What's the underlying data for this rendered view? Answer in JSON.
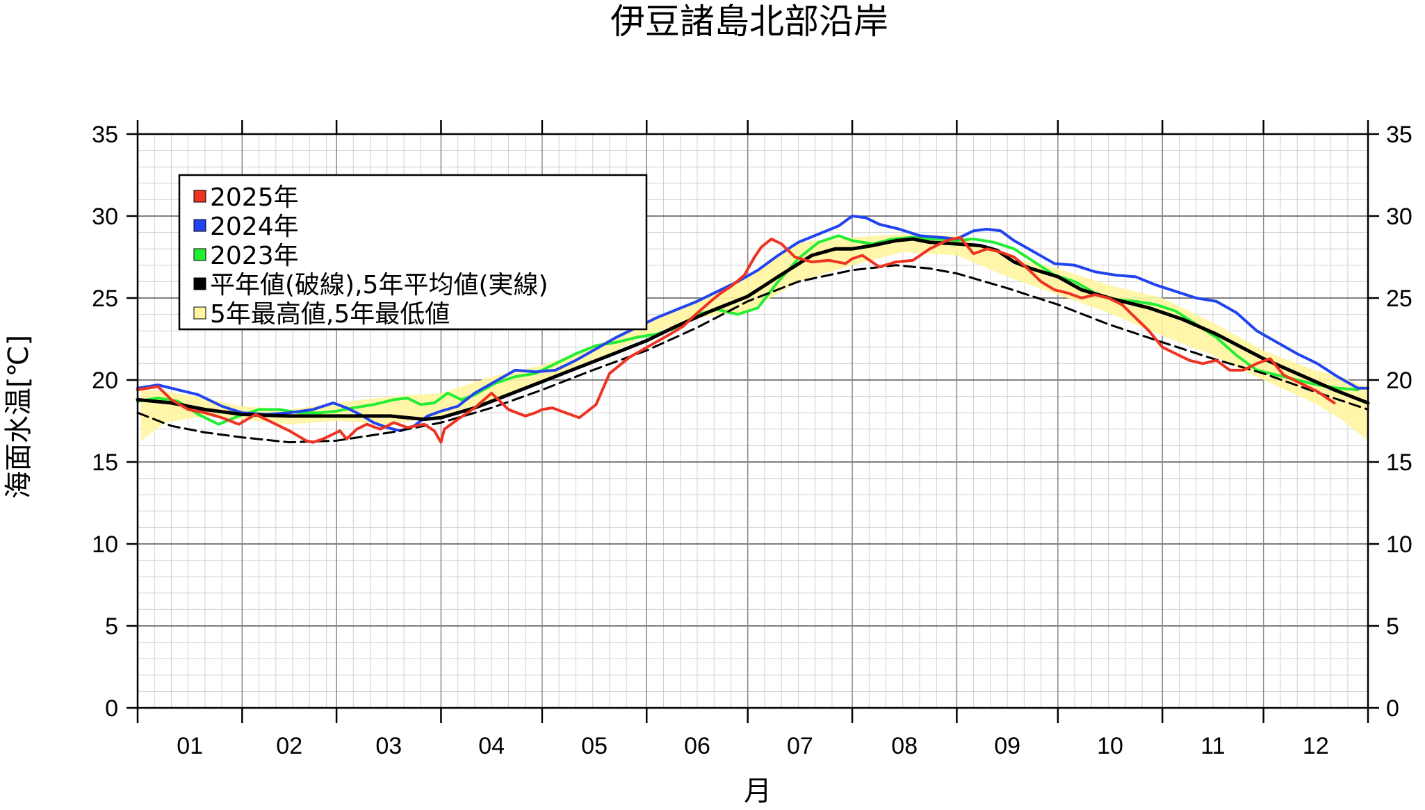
{
  "chart_data": {
    "type": "line",
    "title": "伊豆諸島北部沿岸",
    "xlabel": "月",
    "ylabel": "海面水温[℃]",
    "ylim": [
      0,
      35
    ],
    "xlim": [
      0,
      365
    ],
    "yticks": [
      0,
      5,
      10,
      15,
      20,
      25,
      30,
      35
    ],
    "month_labels": [
      "01",
      "02",
      "03",
      "04",
      "05",
      "06",
      "07",
      "08",
      "09",
      "10",
      "11",
      "12"
    ],
    "month_starts": [
      0,
      31,
      59,
      90,
      120,
      151,
      181,
      212,
      243,
      273,
      304,
      334,
      365
    ],
    "grid": true,
    "legend_position": "top-left",
    "legend": [
      {
        "label": "2025年",
        "color": "#ee3322"
      },
      {
        "label": "2024年",
        "color": "#2244ee"
      },
      {
        "label": "2023年",
        "color": "#22ee33"
      },
      {
        "label": "平年値(破線),5年平均値(実線)",
        "color": "#000000"
      },
      {
        "label": "5年最高値,5年最低値",
        "color": "#fff5a0"
      }
    ],
    "band": {
      "name": "5年最高値,5年最低値",
      "x": [
        1,
        8,
        20,
        31,
        45,
        59,
        75,
        90,
        105,
        120,
        135,
        151,
        166,
        181,
        196,
        212,
        227,
        243,
        258,
        273,
        288,
        304,
        319,
        334,
        349,
        357,
        365
      ],
      "high": [
        19.4,
        19.3,
        18.9,
        18.4,
        18.2,
        18.6,
        19.0,
        19.2,
        20.2,
        20.9,
        22.0,
        23.6,
        24.9,
        26.3,
        28.4,
        28.7,
        28.9,
        28.8,
        27.5,
        26.8,
        25.8,
        25.0,
        23.5,
        21.8,
        20.6,
        20.2,
        19.5
      ],
      "low": [
        16.3,
        17.4,
        17.8,
        17.6,
        17.3,
        17.5,
        17.3,
        17.8,
        18.6,
        19.9,
        21.1,
        22.7,
        23.8,
        24.2,
        26.0,
        27.0,
        27.8,
        27.6,
        26.3,
        25.2,
        24.1,
        22.7,
        21.5,
        20.0,
        18.6,
        17.6,
        16.3
      ]
    },
    "series": [
      {
        "name": "2025年",
        "color": "#ee3322",
        "x": [
          0,
          6,
          10,
          15,
          20,
          25,
          30,
          35,
          40,
          45,
          50,
          52,
          55,
          58,
          60,
          62,
          65,
          68,
          72,
          76,
          80,
          85,
          88,
          90,
          91,
          95,
          100,
          105,
          110,
          115,
          118,
          120,
          123,
          127,
          131,
          136,
          140,
          146,
          152,
          158,
          162,
          165,
          170,
          173,
          176,
          180,
          183,
          185,
          188,
          191,
          195,
          200,
          205,
          210,
          212,
          215,
          220,
          225,
          230,
          235,
          240,
          244,
          248,
          252,
          256,
          260,
          264,
          268,
          272,
          276,
          280,
          284,
          288,
          292,
          296,
          300,
          304,
          308,
          312,
          316,
          320,
          324,
          328,
          332,
          336,
          340,
          345,
          350,
          355
        ],
        "y": [
          19.4,
          19.6,
          18.8,
          18.2,
          18.0,
          17.7,
          17.3,
          17.9,
          17.4,
          16.9,
          16.3,
          16.2,
          16.4,
          16.7,
          16.9,
          16.4,
          17.0,
          17.3,
          17.0,
          17.4,
          17.1,
          17.3,
          16.9,
          16.2,
          17.0,
          17.6,
          18.3,
          19.2,
          18.2,
          17.8,
          18.0,
          18.2,
          18.3,
          18.0,
          17.7,
          18.5,
          20.4,
          21.4,
          22.1,
          22.8,
          23.3,
          23.9,
          24.8,
          25.3,
          25.7,
          26.4,
          27.5,
          28.1,
          28.6,
          28.3,
          27.5,
          27.2,
          27.3,
          27.1,
          27.4,
          27.6,
          26.9,
          27.2,
          27.3,
          28.0,
          28.5,
          28.7,
          27.7,
          28.0,
          27.8,
          27.5,
          26.8,
          26.0,
          25.5,
          25.3,
          25.0,
          25.2,
          25.0,
          24.6,
          23.8,
          23.0,
          22.0,
          21.6,
          21.2,
          21.0,
          21.2,
          20.6,
          20.6,
          21.0,
          21.3,
          20.3,
          19.8,
          19.3,
          18.6
        ]
      },
      {
        "name": "2024年",
        "color": "#2244ee",
        "x": [
          0,
          6,
          12,
          18,
          25,
          31,
          38,
          45,
          52,
          58,
          62,
          66,
          70,
          74,
          78,
          82,
          86,
          90,
          95,
          100,
          106,
          112,
          118,
          124,
          130,
          136,
          142,
          148,
          154,
          160,
          166,
          172,
          178,
          184,
          190,
          196,
          202,
          208,
          212,
          216,
          220,
          226,
          232,
          238,
          243,
          248,
          252,
          256,
          260,
          266,
          272,
          278,
          284,
          290,
          296,
          302,
          308,
          314,
          320,
          326,
          332,
          338,
          344,
          350,
          356,
          362,
          365
        ],
        "y": [
          19.5,
          19.7,
          19.4,
          19.1,
          18.4,
          18.0,
          17.9,
          18.0,
          18.2,
          18.6,
          18.3,
          17.9,
          17.4,
          17.1,
          16.9,
          17.2,
          17.8,
          18.1,
          18.4,
          19.2,
          19.9,
          20.6,
          20.5,
          20.6,
          21.2,
          21.9,
          22.6,
          23.2,
          23.8,
          24.3,
          24.8,
          25.4,
          26.0,
          26.7,
          27.6,
          28.4,
          28.9,
          29.4,
          30.0,
          29.9,
          29.5,
          29.2,
          28.8,
          28.7,
          28.6,
          29.1,
          29.2,
          29.1,
          28.5,
          27.8,
          27.1,
          27.0,
          26.6,
          26.4,
          26.3,
          25.8,
          25.4,
          25.0,
          24.8,
          24.1,
          23.0,
          22.3,
          21.6,
          21.0,
          20.2,
          19.5,
          19.5
        ]
      },
      {
        "name": "2023年",
        "color": "#22ee33",
        "x": [
          0,
          6,
          12,
          18,
          24,
          30,
          36,
          42,
          48,
          54,
          59,
          64,
          70,
          76,
          80,
          84,
          88,
          92,
          96,
          100,
          106,
          112,
          118,
          124,
          130,
          136,
          142,
          148,
          154,
          160,
          166,
          172,
          178,
          184,
          190,
          196,
          202,
          208,
          212,
          218,
          224,
          230,
          236,
          243,
          248,
          254,
          260,
          266,
          272,
          278,
          284,
          290,
          296,
          302,
          308,
          314,
          320,
          326,
          332,
          338,
          344,
          350,
          356,
          362
        ],
        "y": [
          18.7,
          18.9,
          18.7,
          17.9,
          17.3,
          17.8,
          18.2,
          18.2,
          18.0,
          18.0,
          18.1,
          18.3,
          18.5,
          18.8,
          18.9,
          18.5,
          18.6,
          19.2,
          18.8,
          19.1,
          19.8,
          20.2,
          20.4,
          21.0,
          21.6,
          22.1,
          22.3,
          22.6,
          22.8,
          23.2,
          24.0,
          24.3,
          24.0,
          24.4,
          26.0,
          27.4,
          28.4,
          28.8,
          28.5,
          28.3,
          28.6,
          28.7,
          28.6,
          28.5,
          28.6,
          28.4,
          28.0,
          27.2,
          26.4,
          26.0,
          25.3,
          24.9,
          24.8,
          24.6,
          24.2,
          23.4,
          22.6,
          21.5,
          20.6,
          20.3,
          20.0,
          19.7,
          19.5,
          19.4
        ]
      },
      {
        "name": "5年平均値",
        "color": "#000000",
        "style": "solid",
        "x": [
          0,
          10,
          20,
          31,
          45,
          59,
          75,
          85,
          90,
          100,
          110,
          120,
          130,
          140,
          151,
          160,
          170,
          181,
          190,
          200,
          207,
          212,
          218,
          225,
          230,
          235,
          243,
          250,
          255,
          260,
          265,
          273,
          280,
          290,
          300,
          310,
          320,
          334,
          345,
          355,
          365
        ],
        "y": [
          18.8,
          18.6,
          18.2,
          17.9,
          17.8,
          17.8,
          17.8,
          17.6,
          17.7,
          18.3,
          19.1,
          19.9,
          20.7,
          21.5,
          22.4,
          23.3,
          24.2,
          25.1,
          26.3,
          27.6,
          28.0,
          28.0,
          28.2,
          28.5,
          28.6,
          28.4,
          28.3,
          28.2,
          27.9,
          27.2,
          26.8,
          26.3,
          25.5,
          24.9,
          24.4,
          23.7,
          22.8,
          21.3,
          20.3,
          19.4,
          18.6
        ]
      },
      {
        "name": "平年値",
        "color": "#000000",
        "style": "dashed",
        "x": [
          0,
          10,
          20,
          31,
          45,
          59,
          75,
          90,
          105,
          120,
          135,
          151,
          166,
          181,
          196,
          212,
          225,
          235,
          243,
          258,
          273,
          288,
          304,
          319,
          334,
          349,
          365
        ],
        "y": [
          18.0,
          17.2,
          16.8,
          16.5,
          16.2,
          16.3,
          16.8,
          17.4,
          18.3,
          19.4,
          20.6,
          21.8,
          23.2,
          24.8,
          26.0,
          26.7,
          27.0,
          26.8,
          26.5,
          25.6,
          24.6,
          23.4,
          22.3,
          21.3,
          20.4,
          19.3,
          18.2
        ]
      }
    ]
  }
}
